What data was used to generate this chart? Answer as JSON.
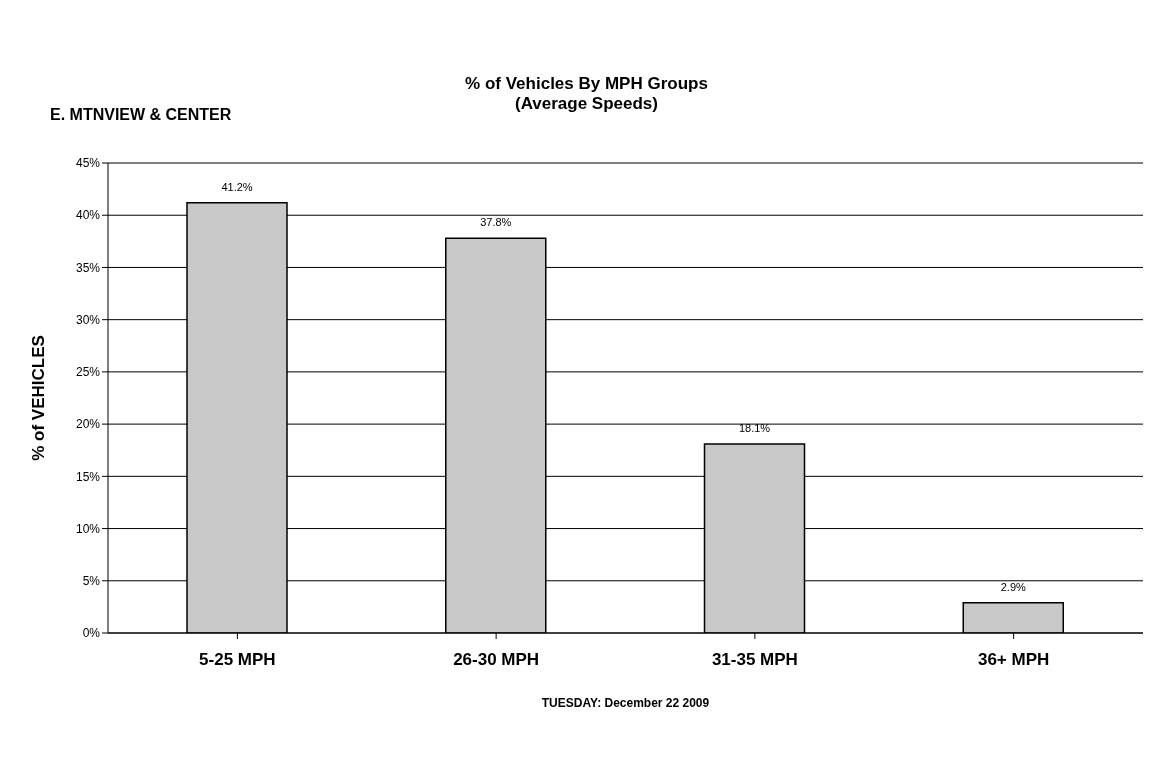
{
  "chart_data": {
    "type": "bar",
    "title": "% of Vehicles By MPH Groups",
    "subtitle": "(Average Speeds)",
    "xlabel": "TUESDAY: December 22 2009",
    "ylabel": "% of VEHICLES",
    "annotations": [
      "E. MTNVIEW & CENTER"
    ],
    "categories": [
      "5-25 MPH",
      "26-30 MPH",
      "31-35 MPH",
      "36+ MPH"
    ],
    "values": [
      41.2,
      37.8,
      18.1,
      2.9
    ],
    "value_labels": [
      "41.2%",
      "37.8%",
      "18.1%",
      "2.9%"
    ],
    "color": "#c8c8c8",
    "ylim": [
      0,
      45
    ],
    "yticks": [
      {
        "value": 0,
        "label": "0%"
      },
      {
        "value": 5,
        "label": "5%"
      },
      {
        "value": 10,
        "label": "10%"
      },
      {
        "value": 15,
        "label": "15%"
      },
      {
        "value": 20,
        "label": "20%"
      },
      {
        "value": 25,
        "label": "25%"
      },
      {
        "value": 30,
        "label": "30%"
      },
      {
        "value": 35,
        "label": "35%"
      },
      {
        "value": 40,
        "label": "40%"
      },
      {
        "value": 45,
        "label": "45%"
      }
    ],
    "grid": "y",
    "legend": false
  }
}
